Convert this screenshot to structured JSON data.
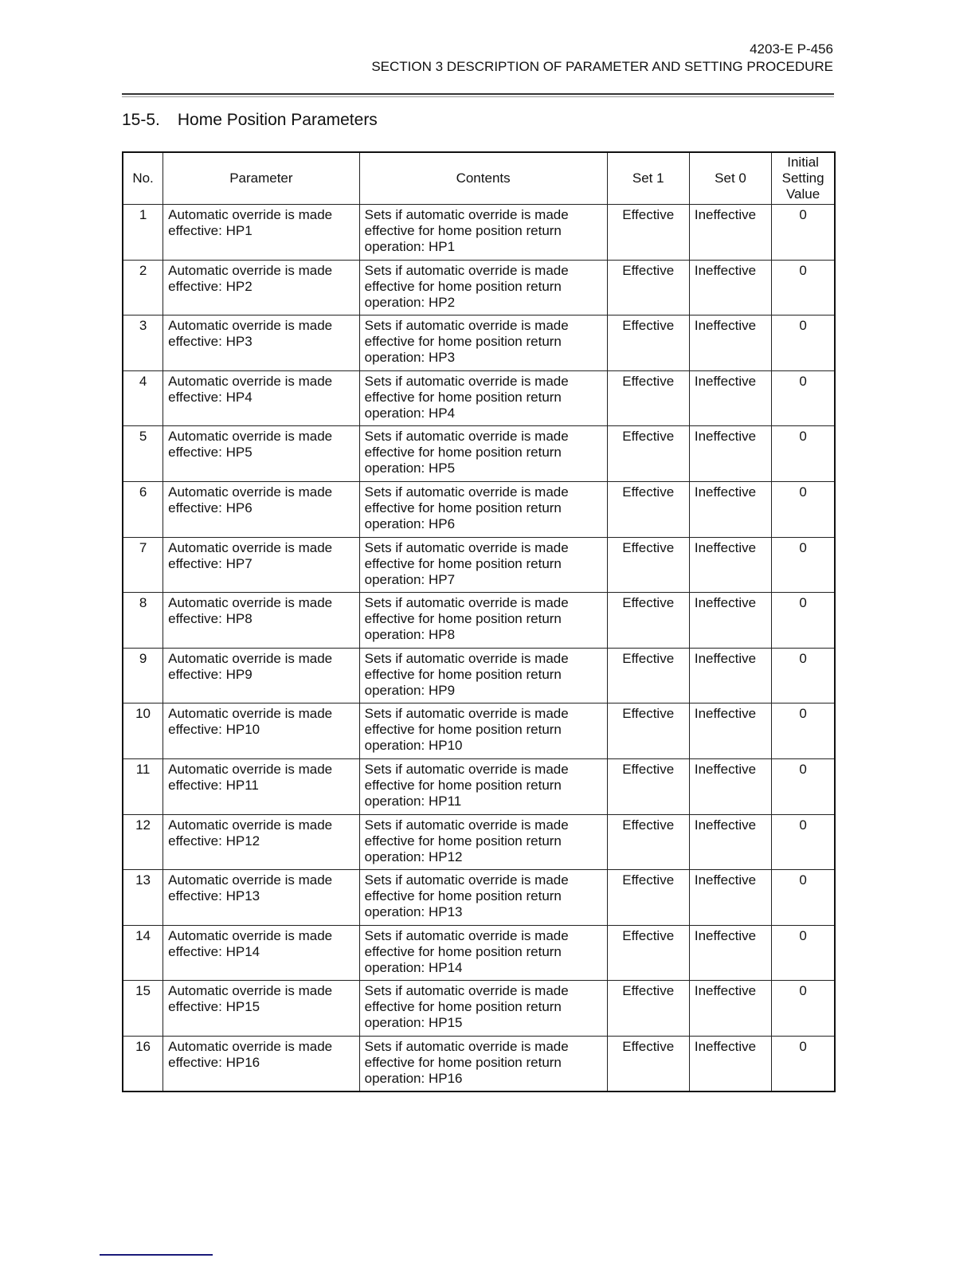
{
  "header": {
    "doc_id": "4203-E  P-456",
    "section": "SECTION 3  DESCRIPTION OF PARAMETER AND SETTING PROCEDURE"
  },
  "title": {
    "number": "15-5.",
    "text": "Home Position Parameters"
  },
  "table": {
    "columns": [
      "No.",
      "Parameter",
      "Contents",
      "Set 1",
      "Set 0",
      "Initial Setting Value"
    ],
    "rows": [
      {
        "no": "1",
        "parameter": "Automatic override is made effective:  HP1",
        "contents": "Sets if automatic override is made effective for home position return operation:  HP1",
        "set1": "Effective",
        "set0": "Ineffective",
        "initial": "0"
      },
      {
        "no": "2",
        "parameter": "Automatic override is made effective:  HP2",
        "contents": "Sets if automatic override is made effective for home position return operation:  HP2",
        "set1": "Effective",
        "set0": "Ineffective",
        "initial": "0"
      },
      {
        "no": "3",
        "parameter": "Automatic override is made effective:  HP3",
        "contents": "Sets if automatic override is made effective for home position return operation:  HP3",
        "set1": "Effective",
        "set0": "Ineffective",
        "initial": "0"
      },
      {
        "no": "4",
        "parameter": "Automatic override is made effective:  HP4",
        "contents": "Sets if automatic override is made effective for home position return operation:  HP4",
        "set1": "Effective",
        "set0": "Ineffective",
        "initial": "0"
      },
      {
        "no": "5",
        "parameter": "Automatic override is made effective:  HP5",
        "contents": "Sets if automatic override is made effective for home position return operation:  HP5",
        "set1": "Effective",
        "set0": "Ineffective",
        "initial": "0"
      },
      {
        "no": "6",
        "parameter": "Automatic override is made effective:  HP6",
        "contents": "Sets if automatic override is made effective for home position return operation:  HP6",
        "set1": "Effective",
        "set0": "Ineffective",
        "initial": "0"
      },
      {
        "no": "7",
        "parameter": "Automatic override is made effective:  HP7",
        "contents": "Sets if automatic override is made effective for home position return operation:  HP7",
        "set1": "Effective",
        "set0": "Ineffective",
        "initial": "0"
      },
      {
        "no": "8",
        "parameter": "Automatic override is made effective:  HP8",
        "contents": "Sets if automatic override is made effective for home position return operation:  HP8",
        "set1": "Effective",
        "set0": "Ineffective",
        "initial": "0"
      },
      {
        "no": "9",
        "parameter": "Automatic override is made effective:  HP9",
        "contents": "Sets if automatic override is made effective for home position return operation:  HP9",
        "set1": "Effective",
        "set0": "Ineffective",
        "initial": "0"
      },
      {
        "no": "10",
        "parameter": "Automatic override is made effective:  HP10",
        "contents": "Sets if automatic override is made effective for home position return operation:  HP10",
        "set1": "Effective",
        "set0": "Ineffective",
        "initial": "0"
      },
      {
        "no": "11",
        "parameter": "Automatic override is made effective:  HP11",
        "contents": "Sets if automatic override is made effective for home position return operation:  HP11",
        "set1": "Effective",
        "set0": "Ineffective",
        "initial": "0"
      },
      {
        "no": "12",
        "parameter": "Automatic override is made effective:  HP12",
        "contents": "Sets if automatic override is made effective for home position return operation:  HP12",
        "set1": "Effective",
        "set0": "Ineffective",
        "initial": "0"
      },
      {
        "no": "13",
        "parameter": "Automatic override is made effective:  HP13",
        "contents": "Sets if automatic override is made effective for home position return operation:  HP13",
        "set1": "Effective",
        "set0": "Ineffective",
        "initial": "0"
      },
      {
        "no": "14",
        "parameter": "Automatic override is made effective:  HP14",
        "contents": "Sets if automatic override is made effective for home position return operation:  HP14",
        "set1": "Effective",
        "set0": "Ineffective",
        "initial": "0"
      },
      {
        "no": "15",
        "parameter": "Automatic override is made effective:  HP15",
        "contents": "Sets if automatic override is made effective for home position return operation:  HP15",
        "set1": "Effective",
        "set0": "Ineffective",
        "initial": "0"
      },
      {
        "no": "16",
        "parameter": "Automatic override is made effective:  HP16",
        "contents": "Sets if automatic override is made effective for home position return operation:  HP16",
        "set1": "Effective",
        "set0": "Ineffective",
        "initial": "0"
      }
    ]
  }
}
